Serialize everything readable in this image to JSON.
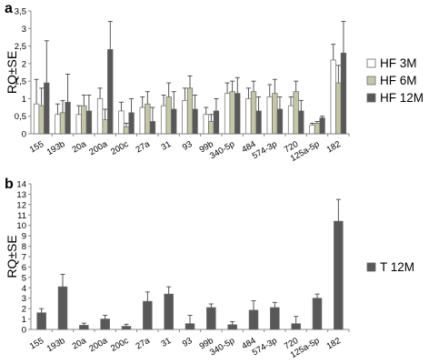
{
  "chart_data": [
    {
      "type": "bar",
      "panel_label": "a",
      "ylabel": "RQ±SE",
      "ylim": [
        0,
        3.5
      ],
      "ytick_labels": [
        "0",
        "0,5",
        "1",
        "1,5",
        "2",
        "2,5",
        "3",
        "3,5"
      ],
      "categories": [
        "155",
        "193b",
        "20a",
        "200a",
        "200c",
        "27a",
        "31",
        "93",
        "99b",
        "340-5p",
        "484",
        "574-3p",
        "720",
        "125a-5p",
        "182"
      ],
      "legend": "right",
      "colors": [
        "#ffffff",
        "#c4c7a5",
        "#585858"
      ],
      "series": [
        {
          "name": "HF 3M",
          "values": [
            0.85,
            0.55,
            0.55,
            1.0,
            0.65,
            0.75,
            0.8,
            0.95,
            0.55,
            1.15,
            1.0,
            1.05,
            0.8,
            0.25,
            2.1
          ],
          "errors": [
            0.7,
            0.3,
            0.25,
            0.3,
            0.25,
            0.3,
            0.3,
            0.35,
            0.2,
            0.3,
            0.3,
            0.35,
            0.25,
            0.05,
            0.45
          ]
        },
        {
          "name": "HF 6M",
          "values": [
            0.8,
            0.6,
            0.8,
            0.4,
            0.2,
            0.85,
            1.05,
            1.3,
            0.35,
            1.2,
            1.2,
            1.15,
            1.2,
            0.3,
            1.45
          ],
          "errors": [
            0.5,
            0.35,
            0.3,
            0.3,
            0.1,
            0.35,
            0.4,
            0.35,
            0.2,
            0.3,
            0.3,
            0.4,
            0.3,
            0.05,
            0.5
          ]
        },
        {
          "name": "HF 12M",
          "values": [
            1.45,
            0.9,
            0.65,
            2.4,
            0.6,
            0.35,
            0.7,
            0.7,
            0.65,
            1.15,
            0.65,
            0.7,
            0.65,
            0.45,
            2.3
          ],
          "errors": [
            1.2,
            0.8,
            0.45,
            0.8,
            0.4,
            0.4,
            0.5,
            0.4,
            0.35,
            0.45,
            0.4,
            0.35,
            0.3,
            0.05,
            0.9
          ]
        }
      ]
    },
    {
      "type": "bar",
      "panel_label": "b",
      "ylabel": "RQ±SE",
      "ylim": [
        0,
        14
      ],
      "ytick_labels": [
        "0",
        "1",
        "2",
        "3",
        "4",
        "5",
        "6",
        "7",
        "8",
        "9",
        "10",
        "11",
        "12",
        "13",
        "14"
      ],
      "categories": [
        "155",
        "193b",
        "20a",
        "200a",
        "200c",
        "27a",
        "31",
        "93",
        "99b",
        "340-5p",
        "484",
        "574-3p",
        "720",
        "125a-5p",
        "182"
      ],
      "legend": "right",
      "colors": [
        "#585858"
      ],
      "series": [
        {
          "name": "T 12M",
          "values": [
            1.6,
            4.1,
            0.4,
            1.0,
            0.3,
            2.7,
            3.4,
            0.55,
            2.1,
            0.45,
            1.85,
            2.1,
            0.55,
            3.0,
            10.4
          ],
          "errors": [
            0.4,
            1.2,
            0.2,
            0.35,
            0.2,
            0.9,
            0.7,
            0.8,
            0.35,
            0.3,
            0.9,
            0.5,
            0.7,
            0.4,
            2.1
          ]
        }
      ]
    }
  ]
}
